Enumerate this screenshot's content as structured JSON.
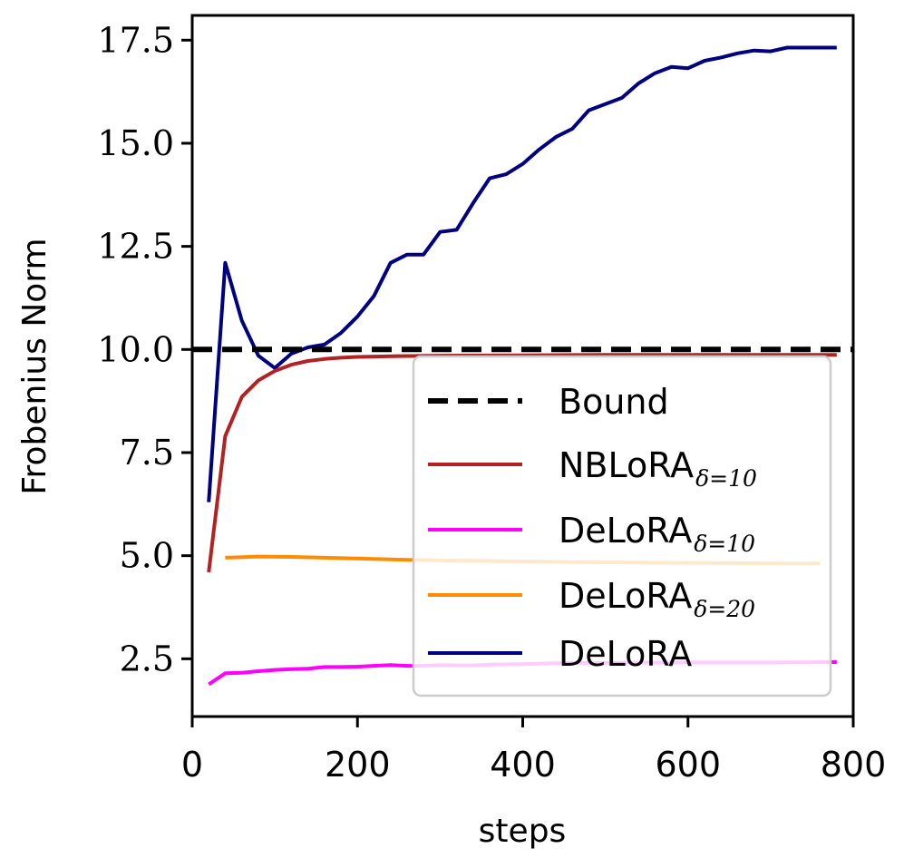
{
  "chart_data": {
    "type": "line",
    "title": "",
    "xlabel": "steps",
    "ylabel": "Frobenius Norm",
    "xlim": [
      0,
      800
    ],
    "ylim": [
      1.1,
      18.1
    ],
    "xticks": [
      0,
      200,
      400,
      600,
      800
    ],
    "xtick_labels": [
      "0",
      "200",
      "400",
      "600",
      "800"
    ],
    "yticks": [
      2.5,
      5.0,
      7.5,
      10.0,
      12.5,
      15.0,
      17.5
    ],
    "ytick_labels": [
      "2.5",
      "5.0",
      "7.5",
      "10.0",
      "12.5",
      "15.0",
      "17.5"
    ],
    "grid": false,
    "legend_position": "lower-right",
    "series": [
      {
        "name": "Bound",
        "legend_main": "Bound",
        "legend_sub": "",
        "color": "#000000",
        "style": "dashed",
        "x": [
          0,
          800
        ],
        "y": [
          10.0,
          10.0
        ]
      },
      {
        "name": "NBLoRA δ=10",
        "legend_main": "NBLoRA",
        "legend_sub": "δ=10",
        "color": "#b22222",
        "style": "solid",
        "x": [
          20,
          40,
          60,
          80,
          100,
          120,
          140,
          160,
          180,
          200,
          250,
          300,
          400,
          500,
          600,
          700,
          780
        ],
        "y": [
          4.6,
          7.9,
          8.85,
          9.25,
          9.48,
          9.63,
          9.72,
          9.77,
          9.8,
          9.82,
          9.84,
          9.85,
          9.86,
          9.87,
          9.87,
          9.87,
          9.87
        ]
      },
      {
        "name": "DeLoRA δ=10",
        "legend_main": "DeLoRA",
        "legend_sub": "δ=10",
        "color": "#ff00ff",
        "style": "solid",
        "x": [
          20,
          40,
          60,
          80,
          100,
          120,
          140,
          160,
          180,
          200,
          220,
          240,
          260,
          280,
          300,
          320,
          340,
          360,
          400,
          450,
          500,
          600,
          700,
          780
        ],
        "y": [
          1.88,
          2.15,
          2.16,
          2.2,
          2.23,
          2.25,
          2.26,
          2.3,
          2.3,
          2.31,
          2.33,
          2.35,
          2.33,
          2.33,
          2.35,
          2.34,
          2.34,
          2.36,
          2.37,
          2.4,
          2.4,
          2.41,
          2.41,
          2.42
        ]
      },
      {
        "name": "DeLoRA δ=20",
        "legend_main": "DeLoRA",
        "legend_sub": "δ=20",
        "color": "#ff8c00",
        "style": "solid",
        "x": [
          40,
          80,
          120,
          160,
          200,
          260,
          320,
          400,
          480,
          560,
          640,
          720,
          760
        ],
        "y": [
          4.95,
          4.98,
          4.97,
          4.95,
          4.93,
          4.9,
          4.88,
          4.86,
          4.84,
          4.83,
          4.82,
          4.81,
          4.81
        ]
      },
      {
        "name": "DeLoRA",
        "legend_main": "DeLoRA",
        "legend_sub": "",
        "color": "#000080",
        "style": "solid",
        "x": [
          20,
          40,
          60,
          80,
          100,
          120,
          140,
          160,
          180,
          200,
          220,
          240,
          260,
          280,
          300,
          320,
          340,
          360,
          380,
          400,
          420,
          440,
          460,
          480,
          500,
          520,
          540,
          560,
          580,
          600,
          620,
          640,
          660,
          680,
          700,
          720,
          740,
          760,
          780
        ],
        "y": [
          6.3,
          12.1,
          10.7,
          9.85,
          9.55,
          9.9,
          10.05,
          10.12,
          10.4,
          10.8,
          11.3,
          12.1,
          12.3,
          12.3,
          12.85,
          12.9,
          13.55,
          14.15,
          14.25,
          14.5,
          14.85,
          15.15,
          15.35,
          15.8,
          15.95,
          16.1,
          16.45,
          16.7,
          16.85,
          16.82,
          17.0,
          17.08,
          17.18,
          17.25,
          17.23,
          17.32,
          17.32,
          17.32,
          17.32
        ]
      }
    ]
  }
}
